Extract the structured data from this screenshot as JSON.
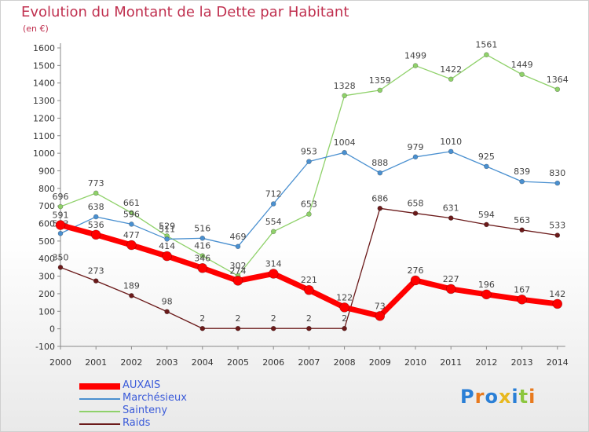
{
  "title": "Evolution du Montant de la Dette par Habitant",
  "subtitle": "(en €)",
  "logo": {
    "letters": [
      "P",
      "r",
      "o",
      "x",
      "i",
      "t",
      "i"
    ],
    "colors": [
      "#2a7fd6",
      "#e87a1e",
      "#2a7fd6",
      "#e8b81e",
      "#2a7fd6",
      "#8cc63f",
      "#e87a1e"
    ]
  },
  "chart_data": {
    "type": "line",
    "x": [
      "2000",
      "2001",
      "2002",
      "2003",
      "2004",
      "2005",
      "2006",
      "2007",
      "2008",
      "2009",
      "2010",
      "2011",
      "2012",
      "2013",
      "2014"
    ],
    "ylim": [
      -100,
      1600
    ],
    "yticks": [
      -100,
      0,
      100,
      200,
      300,
      400,
      500,
      600,
      700,
      800,
      900,
      1000,
      1100,
      1200,
      1300,
      1400,
      1500,
      1600
    ],
    "grid": false,
    "legend_position": "bottom-left",
    "series": [
      {
        "name": "Raids",
        "color": "#6b1a1a",
        "values": [
          350,
          273,
          189,
          98,
          2,
          2,
          2,
          2,
          2,
          686,
          658,
          631,
          594,
          563,
          533
        ]
      },
      {
        "name": "Sainteny",
        "color": "#8fd16a",
        "values": [
          696,
          773,
          661,
          529,
          416,
          302,
          554,
          653,
          1328,
          1359,
          1499,
          1422,
          1561,
          1449,
          1364
        ]
      },
      {
        "name": "Marchésieux",
        "color": "#4a90d0",
        "values": [
          543,
          638,
          596,
          511,
          516,
          469,
          712,
          953,
          1004,
          888,
          979,
          1010,
          925,
          839,
          830
        ]
      },
      {
        "name": "AUXAIS",
        "color": "#ff0000",
        "values": [
          591,
          536,
          477,
          414,
          346,
          274,
          314,
          221,
          122,
          73,
          276,
          227,
          196,
          167,
          142
        ]
      }
    ],
    "legend": [
      "AUXAIS",
      "Marchésieux",
      "Sainteny",
      "Raids"
    ]
  }
}
